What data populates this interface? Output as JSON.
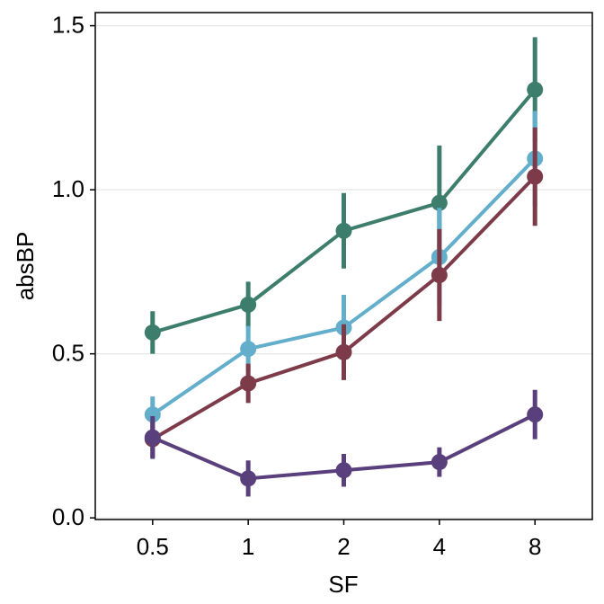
{
  "chart_data": {
    "type": "line",
    "x_label": "SF",
    "y_label": "absBP",
    "categories": [
      "0.5",
      "1",
      "2",
      "4",
      "8"
    ],
    "ylim": [
      -0.005,
      1.54
    ],
    "yticks": [
      {
        "value": 0,
        "label": "0.0"
      },
      0.5,
      {
        "value": 1,
        "label": "1.0"
      },
      1.5
    ],
    "grid": true,
    "series": [
      {
        "color": "#3d7d6b",
        "values": [
          0.565,
          0.65,
          0.875,
          0.96,
          1.305
        ],
        "errors": [
          0.065,
          0.07,
          0.115,
          0.175,
          0.16
        ]
      },
      {
        "color": "#62aecb",
        "values": [
          0.315,
          0.515,
          0.58,
          0.795,
          1.095
        ],
        "errors": [
          0.055,
          0.07,
          0.1,
          0.15,
          0.145
        ]
      },
      {
        "color": "#7d3b4a",
        "values": [
          0.24,
          0.41,
          0.505,
          0.74,
          1.04
        ],
        "errors": [
          0.055,
          0.06,
          0.085,
          0.14,
          0.15
        ]
      },
      {
        "color": "#5a3f7d",
        "values": [
          0.245,
          0.12,
          0.145,
          0.17,
          0.315
        ],
        "errors": [
          0.065,
          0.055,
          0.05,
          0.045,
          0.075
        ]
      }
    ]
  }
}
